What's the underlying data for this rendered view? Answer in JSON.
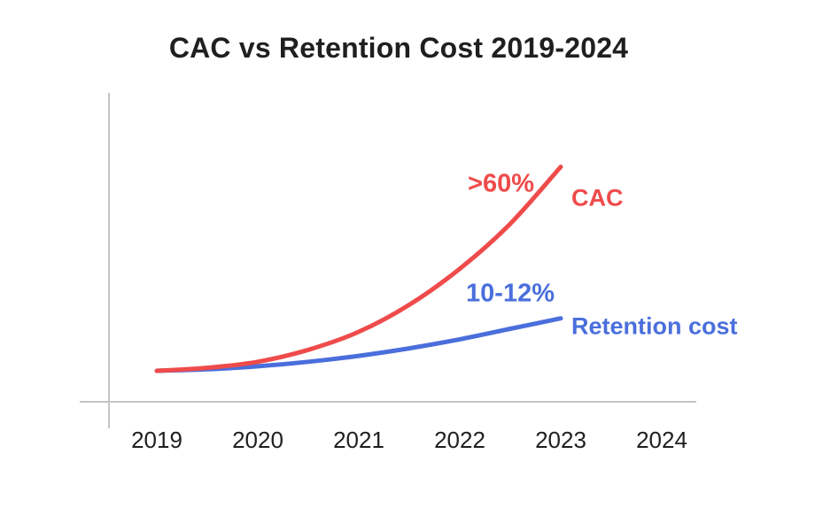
{
  "chart_data": {
    "type": "line",
    "title": "CAC vs Retention Cost 2019-2024",
    "categories": [
      "2019",
      "2020",
      "2021",
      "2022",
      "2023",
      "2024"
    ],
    "xlabel": "",
    "ylabel": "",
    "xlim": [
      2019,
      2024
    ],
    "ylim": [
      0,
      100
    ],
    "grid": false,
    "legend": "inline-right",
    "series": [
      {
        "name": "CAC",
        "color": "#ef4b4b",
        "x": [
          2019,
          2019.5,
          2020,
          2020.5,
          2021,
          2021.5,
          2022,
          2022.5,
          2023
        ],
        "values": [
          0,
          1,
          3,
          7,
          13,
          22,
          34,
          49,
          68
        ],
        "annotation": ">60%"
      },
      {
        "name": "Retention cost",
        "color": "#4a6fdc",
        "x": [
          2019,
          2019.5,
          2020,
          2020.5,
          2021,
          2021.5,
          2022,
          2022.5,
          2023
        ],
        "values": [
          0,
          0.5,
          1.5,
          3,
          5,
          7.5,
          10.5,
          14,
          17.5
        ],
        "annotation": "10-12%"
      }
    ]
  },
  "colors": {
    "axis": "#c4c4c4",
    "text": "#1f1f1f"
  }
}
